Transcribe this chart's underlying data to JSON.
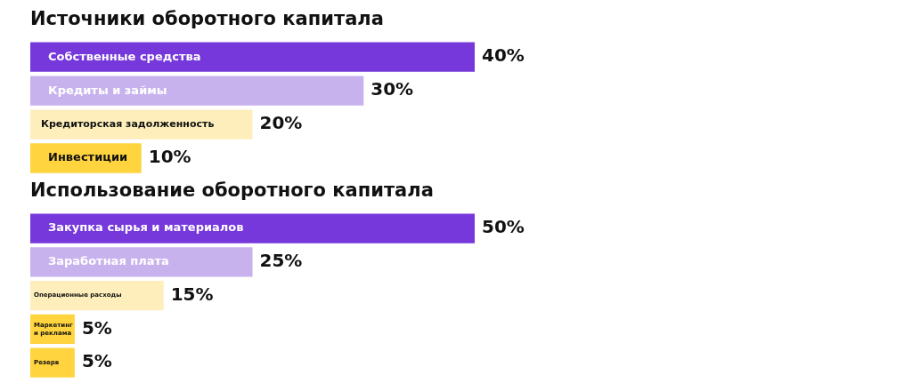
{
  "chart_data": [
    {
      "type": "bar",
      "orientation": "horizontal",
      "title": "Источники оборотного капитала",
      "categories": [
        "Собственные средства",
        "Кредиты и займы",
        "Кредиторская задолженность",
        "Инвестиции"
      ],
      "values": [
        40,
        30,
        20,
        10
      ],
      "colors": [
        "#7638db",
        "#c8b2ee",
        "#fdeebb",
        "#ffd43f"
      ],
      "value_labels": [
        "40%",
        "30%",
        "20%",
        "10%"
      ]
    },
    {
      "type": "bar",
      "orientation": "horizontal",
      "title": "Использование оборотного капитала",
      "categories": [
        "Закупка сырья и материалов",
        "Заработная плата",
        "Операционные расходы",
        "Маркетинг и реклама",
        "Резерв"
      ],
      "values": [
        50,
        25,
        15,
        5,
        5
      ],
      "colors": [
        "#7638db",
        "#c8b2ee",
        "#fdeebb",
        "#ffd43f",
        "#ffd43f"
      ],
      "value_labels": [
        "50%",
        "25%",
        "15%",
        "5%",
        "5%"
      ]
    }
  ]
}
